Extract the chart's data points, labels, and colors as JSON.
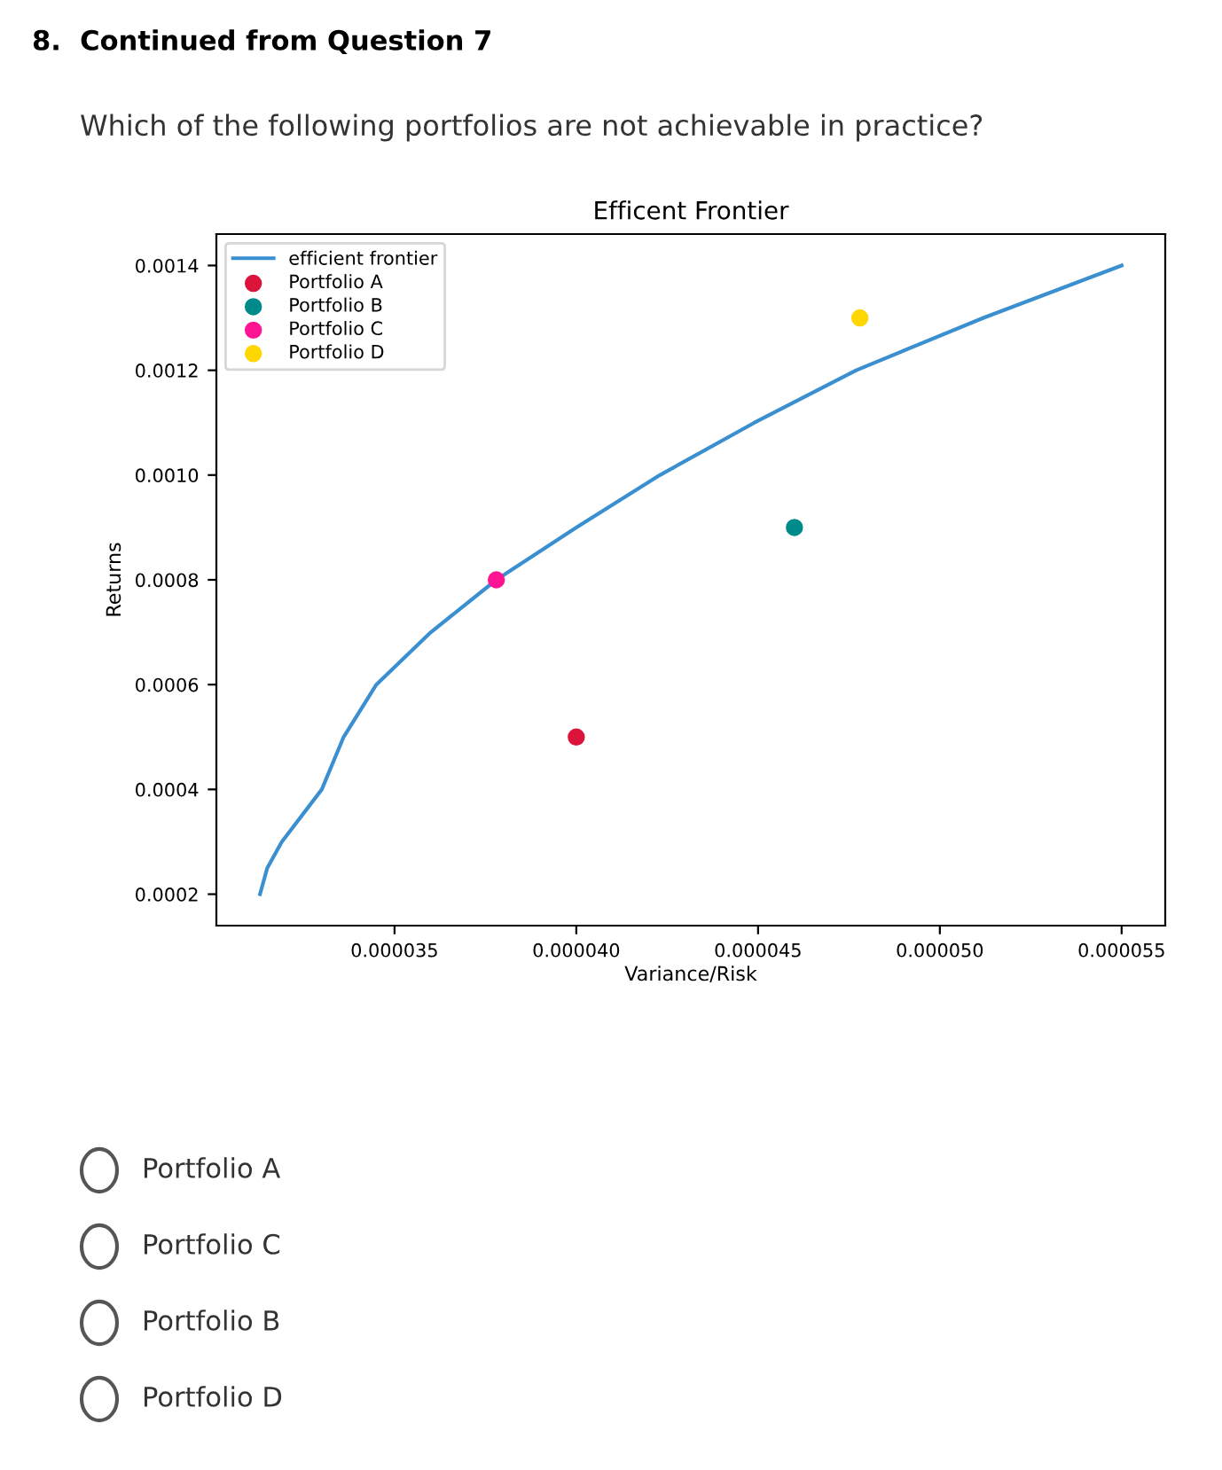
{
  "chart_data": {
    "type": "scatter",
    "title": "Efficent Frontier",
    "xlabel": "Variance/Risk",
    "ylabel": "Returns",
    "annotations": [
      "8.  Continued from Question 7",
      "Which of the following portfolios are not achievable in practice?",
      "Portfolio A",
      "Portfolio C",
      "Portfolio B",
      "Portfolio D"
    ],
    "series": [
      {
        "name": "efficient frontier",
        "type": "line",
        "color": "#3a8fd0",
        "marker": "none",
        "line_style": "solid",
        "x": [
          3.13e-05,
          3.15e-05,
          3.19e-05,
          3.3e-05,
          3.36e-05,
          3.45e-05,
          3.6e-05,
          3.78e-05,
          4e-05,
          4.23e-05,
          4.49e-05,
          4.77e-05,
          5.12e-05,
          5.5e-05
        ],
        "values": [
          0.0002,
          0.00025,
          0.0003,
          0.0004,
          0.0005,
          0.0006,
          0.0007,
          0.0008,
          0.0009,
          0.001,
          0.0011,
          0.0012,
          0.0013,
          0.0014
        ]
      },
      {
        "name": "Portfolio A",
        "color": "#dc143c",
        "x": [
          4e-05
        ],
        "values": [
          0.0005
        ]
      },
      {
        "name": "Portfolio B",
        "color": "#008b8b",
        "x": [
          4.6e-05
        ],
        "values": [
          0.0009
        ]
      },
      {
        "name": "Portfolio C",
        "color": "#ff1493",
        "x": [
          3.78e-05
        ],
        "values": [
          0.0008
        ]
      },
      {
        "name": "Portfolio D",
        "color": "#ffd700",
        "x": [
          4.78e-05
        ],
        "values": [
          0.0013
        ]
      }
    ],
    "marker": "circle",
    "xlim": [
      3.01e-05,
      5.62e-05
    ],
    "ylim": [
      0.00014,
      0.00146
    ],
    "xticks": [
      {
        "value": 3.5e-05,
        "label": "0.000035"
      },
      {
        "value": 4e-05,
        "label": "0.000040"
      },
      {
        "value": 4.5e-05,
        "label": "0.000045"
      },
      {
        "value": 5e-05,
        "label": "0.000050"
      },
      {
        "value": 5.5e-05,
        "label": "0.000055"
      }
    ],
    "yticks": [
      {
        "value": 0.0002,
        "label": "0.0002"
      },
      {
        "value": 0.0004,
        "label": "0.0004"
      },
      {
        "value": 0.0006,
        "label": "0.0006"
      },
      {
        "value": 0.0008,
        "label": "0.0008"
      },
      {
        "value": 0.001,
        "label": "0.0010"
      },
      {
        "value": 0.0012,
        "label": "0.0012"
      },
      {
        "value": 0.0014,
        "label": "0.0014"
      }
    ],
    "grid": false,
    "legend": "top left"
  }
}
